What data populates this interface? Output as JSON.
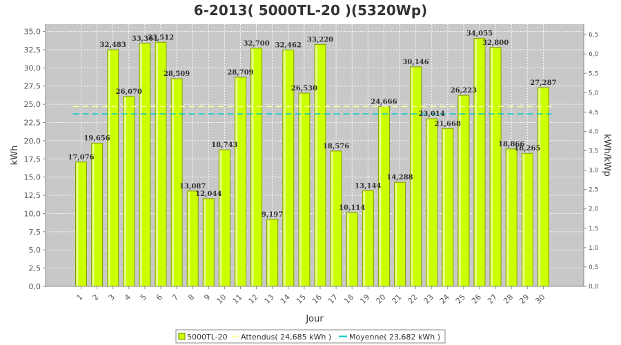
{
  "chart_data": {
    "type": "bar",
    "title": "6-2013( 5000TL-20 )(5320Wp)",
    "xlabel": "Jour",
    "ylabel": "kWh",
    "ylabel_right": "kWh/kWp",
    "ylim": [
      0,
      36.0
    ],
    "ylim_right": [
      0,
      6.77
    ],
    "yticks": [
      "0,0",
      "2,5",
      "5,0",
      "7,5",
      "10,0",
      "12,5",
      "15,0",
      "17,5",
      "20,0",
      "22,5",
      "25,0",
      "27,5",
      "30,0",
      "32,5",
      "35,0"
    ],
    "yticks_right": [
      "0,0",
      "0,5",
      "1,0",
      "1,5",
      "2,0",
      "2,5",
      "3,0",
      "3,5",
      "4,0",
      "4,5",
      "5,0",
      "5,5",
      "6,0",
      "6,5"
    ],
    "categories": [
      "1",
      "2",
      "3",
      "4",
      "5",
      "6",
      "7",
      "8",
      "9",
      "10",
      "11",
      "12",
      "13",
      "14",
      "15",
      "16",
      "17",
      "18",
      "19",
      "20",
      "21",
      "22",
      "23",
      "24",
      "25",
      "26",
      "27",
      "28",
      "29",
      "30"
    ],
    "series": [
      {
        "name": "5000TL-20",
        "values": [
          17.076,
          19.656,
          32.483,
          26.07,
          33.361,
          33.512,
          28.509,
          13.087,
          12.044,
          18.743,
          28.709,
          32.7,
          9.197,
          32.462,
          26.53,
          33.22,
          18.576,
          10.114,
          13.144,
          24.666,
          14.288,
          30.146,
          23.014,
          21.668,
          26.223,
          34.055,
          32.8,
          18.866,
          18.265,
          27.287
        ],
        "labels": [
          "17,076",
          "19,656",
          "32,483",
          "26,070",
          "33,361",
          "33,512",
          "28,509",
          "13,087",
          "12,044",
          "18,743",
          "28,709",
          "32,700",
          "9,197",
          "32,462",
          "26,530",
          "33,220",
          "18,576",
          "10,114",
          "13,144",
          "24,666",
          "14,288",
          "30,146",
          "23,014",
          "21,668",
          "26,223",
          "34,055",
          "32,800",
          "18,866",
          "18,265",
          "27,287"
        ],
        "color": "#ccff00"
      }
    ],
    "reference_lines": [
      {
        "name": "Attendus( 24,685 kWh )",
        "value": 24.685,
        "color": "#ffff99",
        "style": "dashed"
      },
      {
        "name": "Moyenne( 23,682 kWh )",
        "value": 23.682,
        "color": "#00cccc",
        "style": "dashed"
      }
    ],
    "grid": true,
    "legend_position": "bottom",
    "plot_background": "#c8c8c8"
  }
}
